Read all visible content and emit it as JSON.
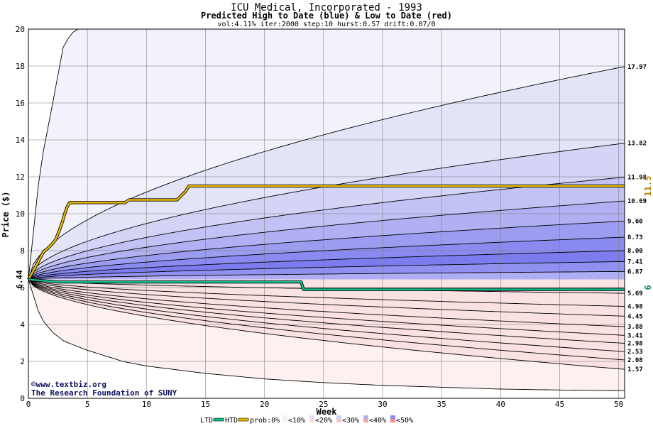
{
  "chart_data": {
    "type": "area",
    "title": "ICU Medical, Incorporated - 1993",
    "subtitle": "Predicted High to Date (blue) &  Low to Date (red)",
    "params": "vol:4.11% iter:2000 step:10 hurst:0.57 drift:0.07/0",
    "xlabel": "Week",
    "ylabel": "Price ($)",
    "xlim": [
      0,
      50.5
    ],
    "ylim": [
      0,
      20
    ],
    "xticks": [
      0,
      5,
      10,
      15,
      20,
      25,
      30,
      35,
      40,
      45,
      50
    ],
    "yticks": [
      0,
      2,
      4,
      6,
      8,
      10,
      12,
      14,
      16,
      18,
      20
    ],
    "grid": true,
    "start_price": 6.44,
    "start_label": "6.44",
    "high_bands": [
      {
        "end": 17.97,
        "label": "17.97",
        "color": "#e4e4f8"
      },
      {
        "end": 13.82,
        "label": "13.82",
        "color": "#d4d4f6"
      },
      {
        "end": 11.98,
        "label": "11.98",
        "color": "#c2c2f4"
      },
      {
        "end": 10.69,
        "label": "10.69",
        "color": "#b0b0f2"
      },
      {
        "end": 9.6,
        "label": "9.60",
        "color": "#9c9cf0"
      },
      {
        "end": 8.73,
        "label": "8.73",
        "color": "#8a8af0"
      },
      {
        "end": 8.0,
        "label": "8.00",
        "color": "#7c7cee"
      },
      {
        "end": 7.41,
        "label": "7.41",
        "color": "#9090f0"
      },
      {
        "end": 6.87,
        "label": "6.87",
        "color": "#aeaef4"
      }
    ],
    "low_bands": [
      {
        "end": 5.69,
        "label": "5.69",
        "color": "#fadcdc"
      },
      {
        "end": 4.98,
        "label": "4.98",
        "color": "#f8cccc"
      },
      {
        "end": 4.45,
        "label": "4.45",
        "color": "#f6b8b8"
      },
      {
        "end": 3.88,
        "label": "3.88",
        "color": "#f4a2a2"
      },
      {
        "end": 3.41,
        "label": "3.41",
        "color": "#f28c8c"
      },
      {
        "end": 2.98,
        "label": "2.98",
        "color": "#f49a9a"
      },
      {
        "end": 2.53,
        "label": "2.53",
        "color": "#f6b4b4"
      },
      {
        "end": 2.08,
        "label": "2.08",
        "color": "#f8caca"
      },
      {
        "end": 1.57,
        "label": "1.57",
        "color": "#fbe2e2"
      }
    ],
    "outer_high": {
      "x": [
        0,
        1,
        2,
        3,
        4,
        5,
        6,
        7,
        8,
        9,
        10,
        11,
        12,
        13,
        14,
        15,
        16,
        17,
        18,
        19,
        20,
        21,
        22,
        23,
        24,
        25,
        26,
        27,
        28,
        29,
        30,
        31,
        32,
        33,
        34,
        35,
        36,
        37,
        38,
        39,
        40,
        41,
        42,
        43,
        44,
        45,
        46,
        47,
        48,
        49,
        50,
        50.5
      ],
      "y": [
        6.44,
        12.5,
        15.8,
        19.2,
        20.0,
        20.0,
        20.0,
        20.0,
        20.0,
        20.0,
        20.0,
        20.0,
        20.0,
        20.0,
        20.0,
        20.0,
        20.0,
        20.0,
        20.0,
        20.0,
        20.0,
        20.0,
        20.0,
        20.0,
        20.0,
        20.0,
        20.0,
        20.0,
        20.0,
        20.0,
        20.0,
        20.0,
        20.0,
        20.0,
        20.0,
        20.0,
        20.0,
        20.0,
        20.0,
        20.0,
        20.0,
        20.0,
        20.0,
        20.0,
        20.0,
        20.0,
        20.0,
        20.0,
        20.0,
        20.0,
        20.0,
        20.0
      ]
    },
    "outer_low": {
      "x": [
        0,
        1,
        2,
        3,
        5,
        8,
        10,
        15,
        20,
        25,
        30,
        35,
        40,
        45,
        50,
        50.5
      ],
      "y": [
        6.44,
        4.4,
        3.6,
        3.1,
        2.6,
        2.0,
        1.75,
        1.35,
        1.05,
        0.85,
        0.7,
        0.6,
        0.5,
        0.45,
        0.42,
        0.42
      ]
    },
    "htd_series": {
      "name": "HTD",
      "color": "#f0c000",
      "x": [
        0,
        0.5,
        1,
        1.3,
        1.6,
        2.0,
        2.3,
        2.6,
        2.9,
        3.1,
        3.3,
        3.5,
        8.2,
        8.5,
        12.6,
        12.9,
        13.3,
        13.6,
        50.5
      ],
      "y": [
        6.44,
        7.0,
        7.6,
        7.95,
        8.1,
        8.35,
        8.6,
        9.05,
        9.6,
        10.05,
        10.4,
        10.6,
        10.6,
        10.75,
        10.75,
        10.95,
        11.2,
        11.5,
        11.5
      ]
    },
    "ltd_series": {
      "name": "LTD",
      "color": "#10c090",
      "x": [
        0,
        2.5,
        23.1,
        23.3,
        50.5
      ],
      "y": [
        6.44,
        6.3,
        6.3,
        5.9,
        5.9
      ]
    },
    "right_markers": [
      {
        "label": "11.5",
        "value": 11.5,
        "color": "#c08000"
      },
      {
        "label": "6",
        "value": 6,
        "color": "#109060"
      }
    ],
    "legend": {
      "ltd_label": "LTD",
      "htd_label": "HTD",
      "prob_label": "prob:0%",
      "items": [
        "<10%",
        "<20%",
        "<30%",
        "<40%",
        "<50%"
      ],
      "ltd_color": "#10c090",
      "htd_color": "#f0c000"
    }
  },
  "credits": {
    "line1": "©www.textbiz.org",
    "line2": "The Research Foundation of SUNY"
  }
}
